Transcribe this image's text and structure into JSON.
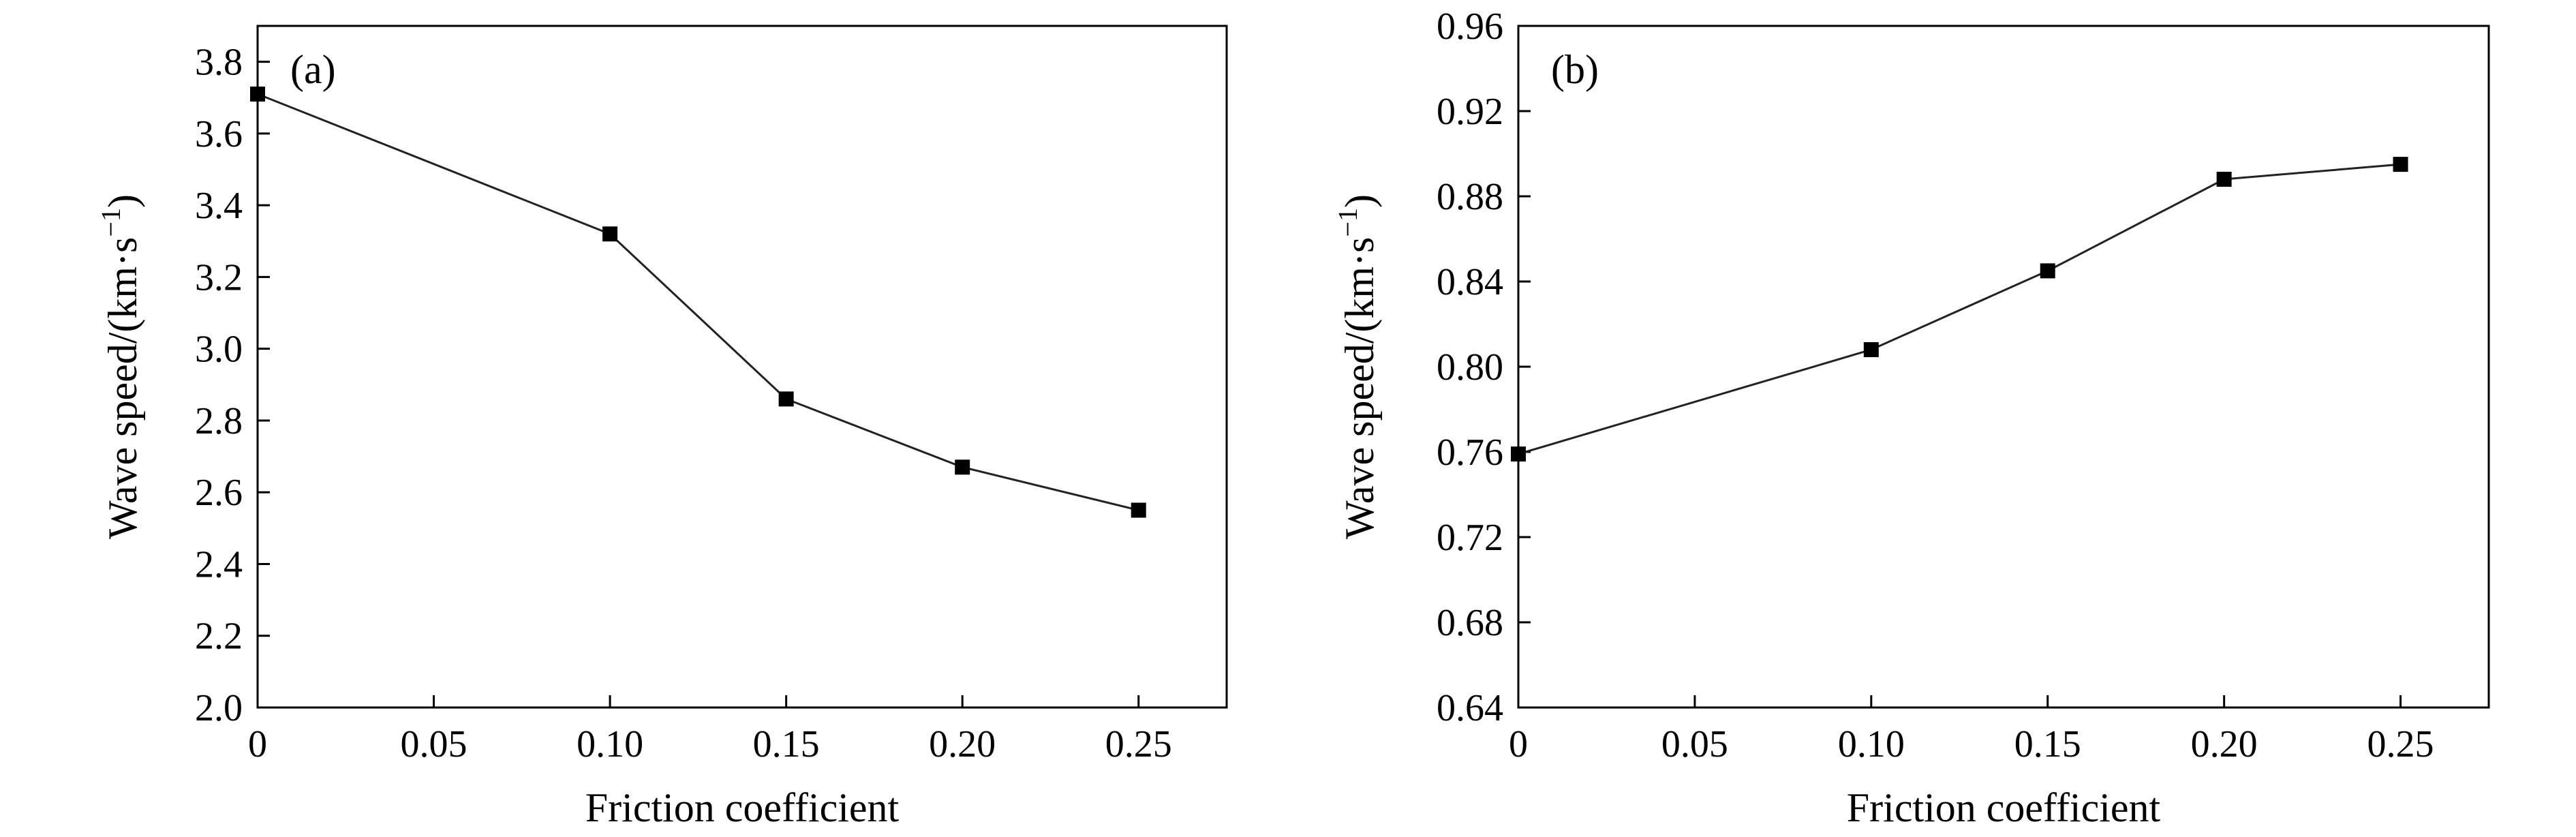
{
  "chart_data": [
    {
      "type": "line",
      "panel_label": "(a)",
      "xlabel": "Friction coefficient",
      "ylabel_main": "Wave speed/(km·s",
      "ylabel_sup": "−1",
      "ylabel_close": ")",
      "xlim": [
        0,
        0.275
      ],
      "ylim": [
        2.0,
        3.9
      ],
      "xticks": [
        0,
        0.05,
        0.1,
        0.15,
        0.2,
        0.25
      ],
      "xtick_labels": [
        "0",
        "0.05",
        "0.10",
        "0.15",
        "0.20",
        "0.25"
      ],
      "yticks": [
        2.0,
        2.2,
        2.4,
        2.6,
        2.8,
        3.0,
        3.2,
        3.4,
        3.6,
        3.8
      ],
      "ytick_labels": [
        "2.0",
        "2.2",
        "2.4",
        "2.6",
        "2.8",
        "3.0",
        "3.2",
        "3.4",
        "3.6",
        "3.8"
      ],
      "grid": false,
      "series": [
        {
          "x": [
            0,
            0.1,
            0.15,
            0.2,
            0.25
          ],
          "y": [
            3.71,
            3.32,
            2.86,
            2.67,
            2.55
          ]
        }
      ]
    },
    {
      "type": "line",
      "panel_label": "(b)",
      "xlabel": "Friction coefficient",
      "ylabel_main": "Wave speed/(km·s",
      "ylabel_sup": "−1",
      "ylabel_close": ")",
      "xlim": [
        0,
        0.275
      ],
      "ylim": [
        0.64,
        0.96
      ],
      "xticks": [
        0,
        0.05,
        0.1,
        0.15,
        0.2,
        0.25
      ],
      "xtick_labels": [
        "0",
        "0.05",
        "0.10",
        "0.15",
        "0.20",
        "0.25"
      ],
      "yticks": [
        0.64,
        0.68,
        0.72,
        0.76,
        0.8,
        0.84,
        0.88,
        0.92,
        0.96
      ],
      "ytick_labels": [
        "0.64",
        "0.68",
        "0.72",
        "0.76",
        "0.80",
        "0.84",
        "0.88",
        "0.92",
        "0.96"
      ],
      "grid": false,
      "series": [
        {
          "x": [
            0,
            0.1,
            0.15,
            0.2,
            0.25
          ],
          "y": [
            0.759,
            0.808,
            0.845,
            0.888,
            0.895
          ]
        }
      ]
    }
  ]
}
